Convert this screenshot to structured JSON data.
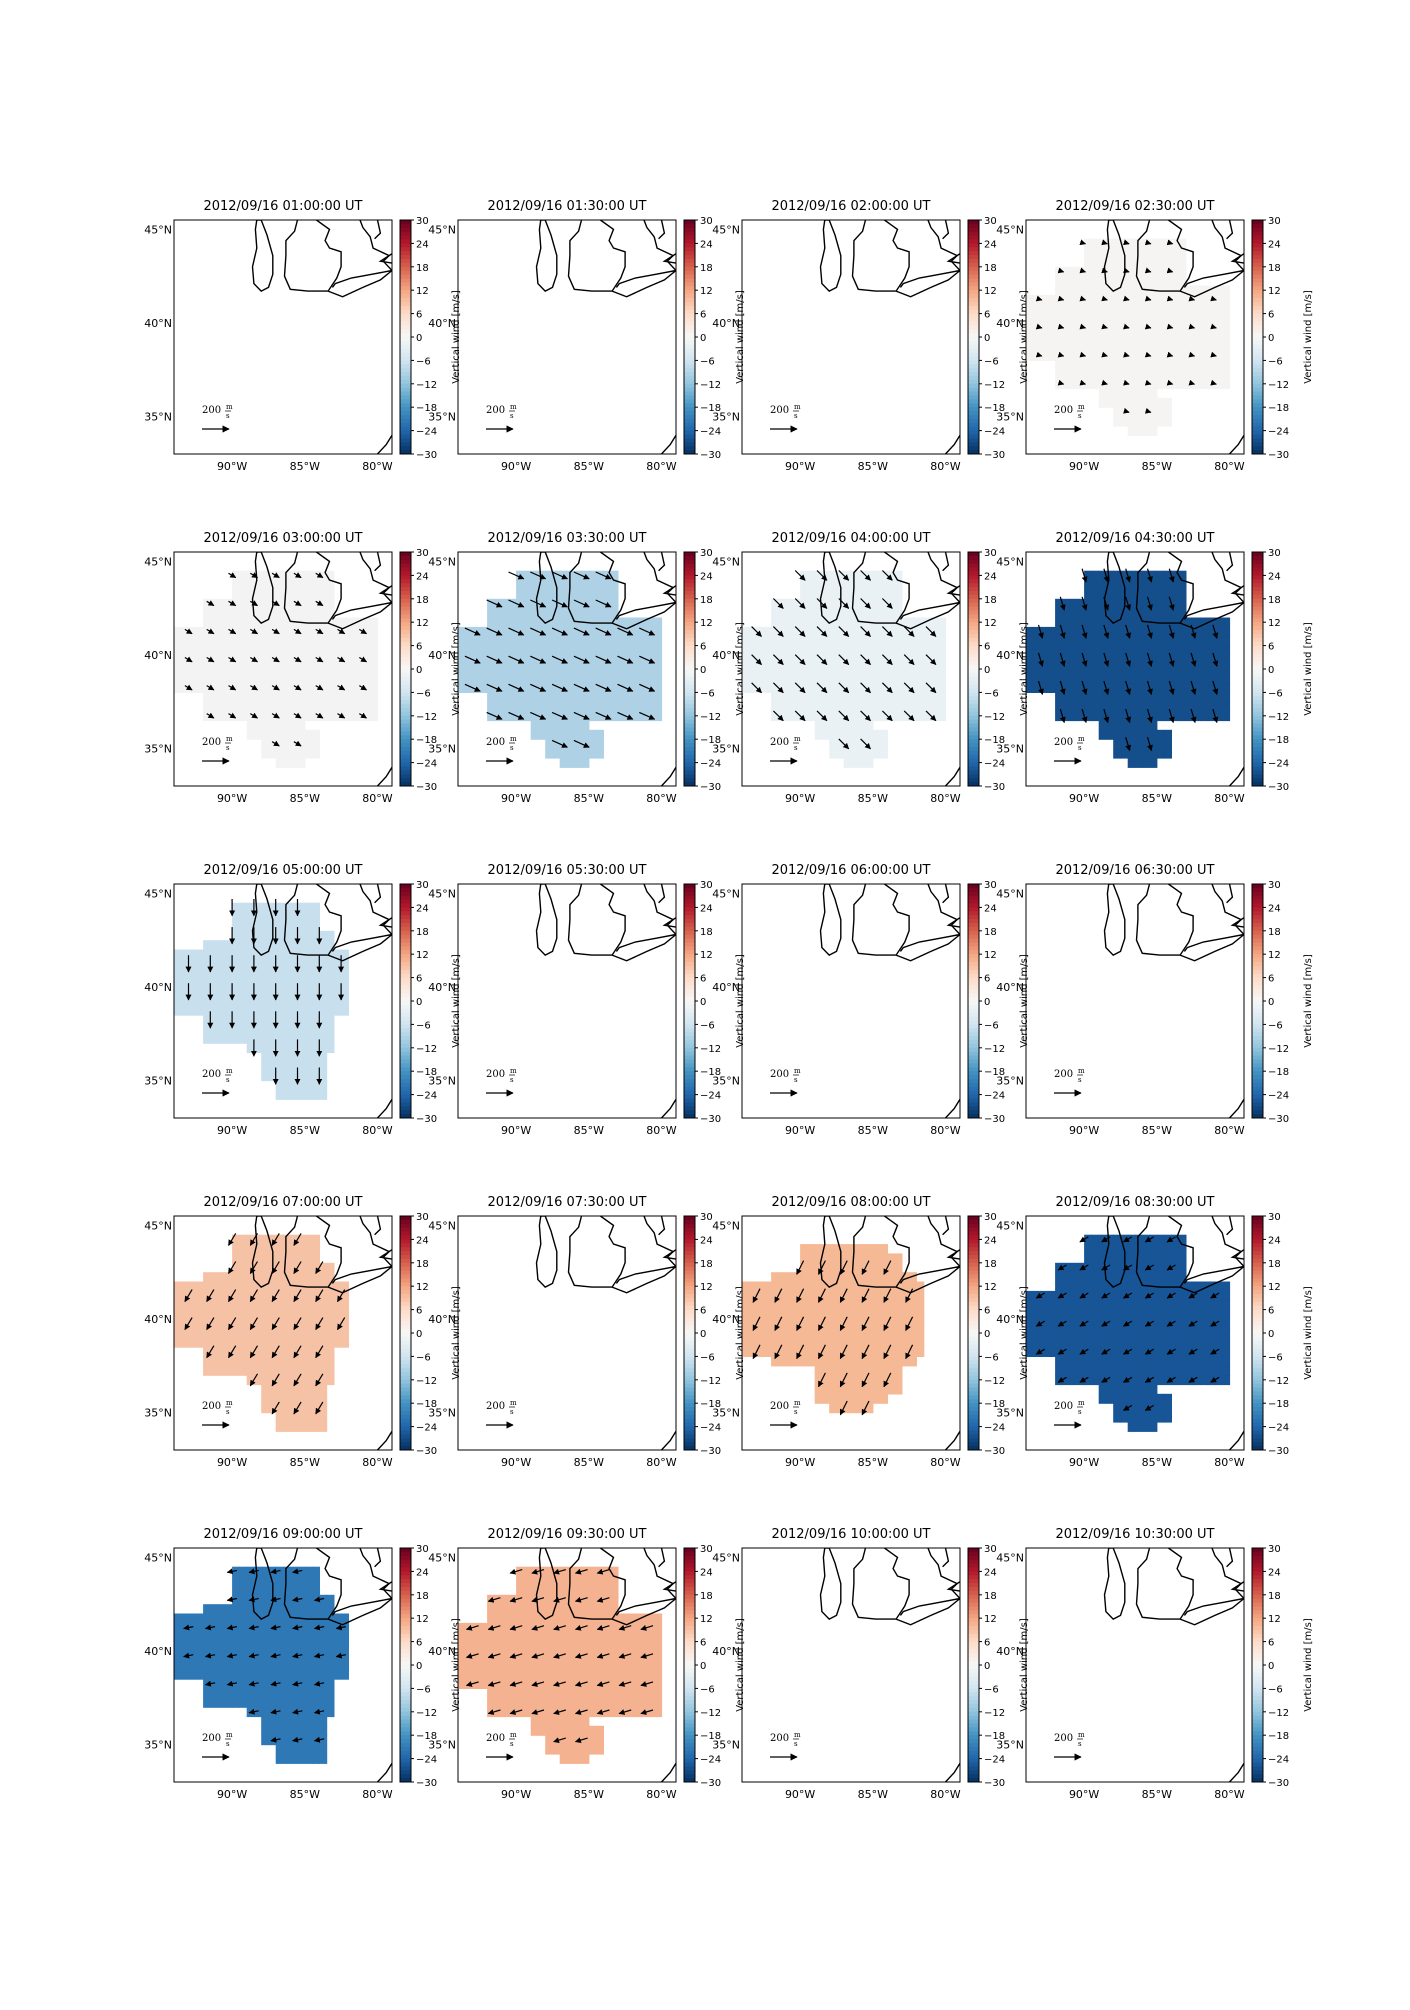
{
  "figure": {
    "colorbar_label": "Vertical wind [m/s]",
    "colorbar_ticks": [
      "30",
      "24",
      "18",
      "12",
      "6",
      "0",
      "−6",
      "−12",
      "−18",
      "−24",
      "−30"
    ],
    "lat_ticks": [
      "45°N",
      "40°N",
      "35°N"
    ],
    "lon_ticks": [
      "90°W",
      "85°W",
      "80°W"
    ],
    "scale_label": "200 m/s",
    "scale_value": "200",
    "scale_unit_num": "m",
    "scale_unit_den": "s"
  },
  "chart_data": [
    {
      "type": "heatmap",
      "title": "2012/09/16 01:00:00 UT",
      "has_data": false
    },
    {
      "type": "heatmap",
      "title": "2012/09/16 01:30:00 UT",
      "has_data": false
    },
    {
      "type": "heatmap",
      "title": "2012/09/16 02:00:00 UT",
      "has_data": false
    },
    {
      "type": "heatmap",
      "title": "2012/09/16 02:30:00 UT",
      "has_data": true,
      "vertical_wind": 0,
      "fill": "#f5f4f3",
      "arrow_speed": 20,
      "arrow_dir": [
        1,
        0.3
      ],
      "shape": "wide",
      "colorbar_range": [
        -30,
        30
      ]
    },
    {
      "type": "heatmap",
      "title": "2012/09/16 03:00:00 UT",
      "has_data": true,
      "vertical_wind": -1,
      "fill": "#f3f3f3",
      "arrow_speed": 60,
      "arrow_dir": [
        1,
        0.6
      ],
      "shape": "wide",
      "colorbar_range": [
        -30,
        30
      ]
    },
    {
      "type": "heatmap",
      "title": "2012/09/16 03:30:00 UT",
      "has_data": true,
      "vertical_wind": -12,
      "fill": "#aed1e5",
      "arrow_speed": 120,
      "arrow_dir": [
        1,
        0.45
      ],
      "shape": "wide",
      "colorbar_range": [
        -30,
        30
      ]
    },
    {
      "type": "heatmap",
      "title": "2012/09/16 04:00:00 UT",
      "has_data": true,
      "vertical_wind": -3,
      "fill": "#eaf1f5",
      "arrow_speed": 100,
      "arrow_dir": [
        1,
        1
      ],
      "shape": "wide",
      "colorbar_range": [
        -30,
        30
      ]
    },
    {
      "type": "heatmap",
      "title": "2012/09/16 04:30:00 UT",
      "has_data": true,
      "vertical_wind": -27,
      "fill": "#144f8b",
      "arrow_speed": 100,
      "arrow_dir": [
        0.3,
        1
      ],
      "shape": "wide",
      "colorbar_range": [
        -30,
        30
      ]
    },
    {
      "type": "heatmap",
      "title": "2012/09/16 05:00:00 UT",
      "has_data": true,
      "vertical_wind": -8,
      "fill": "#c8e0ee",
      "arrow_speed": 120,
      "arrow_dir": [
        0,
        1
      ],
      "shape": "tall",
      "colorbar_range": [
        -30,
        30
      ]
    },
    {
      "type": "heatmap",
      "title": "2012/09/16 05:30:00 UT",
      "has_data": false
    },
    {
      "type": "heatmap",
      "title": "2012/09/16 06:00:00 UT",
      "has_data": false
    },
    {
      "type": "heatmap",
      "title": "2012/09/16 06:30:00 UT",
      "has_data": false
    },
    {
      "type": "heatmap",
      "title": "2012/09/16 07:00:00 UT",
      "has_data": true,
      "vertical_wind": 8,
      "fill": "#f6c2a6",
      "arrow_speed": 100,
      "arrow_dir": [
        -0.6,
        1
      ],
      "shape": "tall",
      "colorbar_range": [
        -30,
        30
      ]
    },
    {
      "type": "heatmap",
      "title": "2012/09/16 07:30:00 UT",
      "has_data": false
    },
    {
      "type": "heatmap",
      "title": "2012/09/16 08:00:00 UT",
      "has_data": true,
      "vertical_wind": 9,
      "fill": "#f5b996",
      "arrow_speed": 110,
      "arrow_dir": [
        -0.5,
        1
      ],
      "shape": "compact",
      "colorbar_range": [
        -30,
        30
      ]
    },
    {
      "type": "heatmap",
      "title": "2012/09/16 08:30:00 UT",
      "has_data": true,
      "vertical_wind": -26,
      "fill": "#175597",
      "arrow_speed": 70,
      "arrow_dir": [
        -1,
        0.6
      ],
      "shape": "wide",
      "colorbar_range": [
        -30,
        30
      ]
    },
    {
      "type": "heatmap",
      "title": "2012/09/16 09:00:00 UT",
      "has_data": true,
      "vertical_wind": -21,
      "fill": "#2e78b6",
      "arrow_speed": 70,
      "arrow_dir": [
        -1,
        0.2
      ],
      "shape": "tall",
      "colorbar_range": [
        -30,
        30
      ]
    },
    {
      "type": "heatmap",
      "title": "2012/09/16 09:30:00 UT",
      "has_data": true,
      "vertical_wind": 10,
      "fill": "#f4b290",
      "arrow_speed": 90,
      "arrow_dir": [
        -1,
        0.3
      ],
      "shape": "wide",
      "colorbar_range": [
        -30,
        30
      ]
    },
    {
      "type": "heatmap",
      "title": "2012/09/16 10:00:00 UT",
      "has_data": false
    },
    {
      "type": "heatmap",
      "title": "2012/09/16 10:30:00 UT",
      "has_data": false
    }
  ]
}
